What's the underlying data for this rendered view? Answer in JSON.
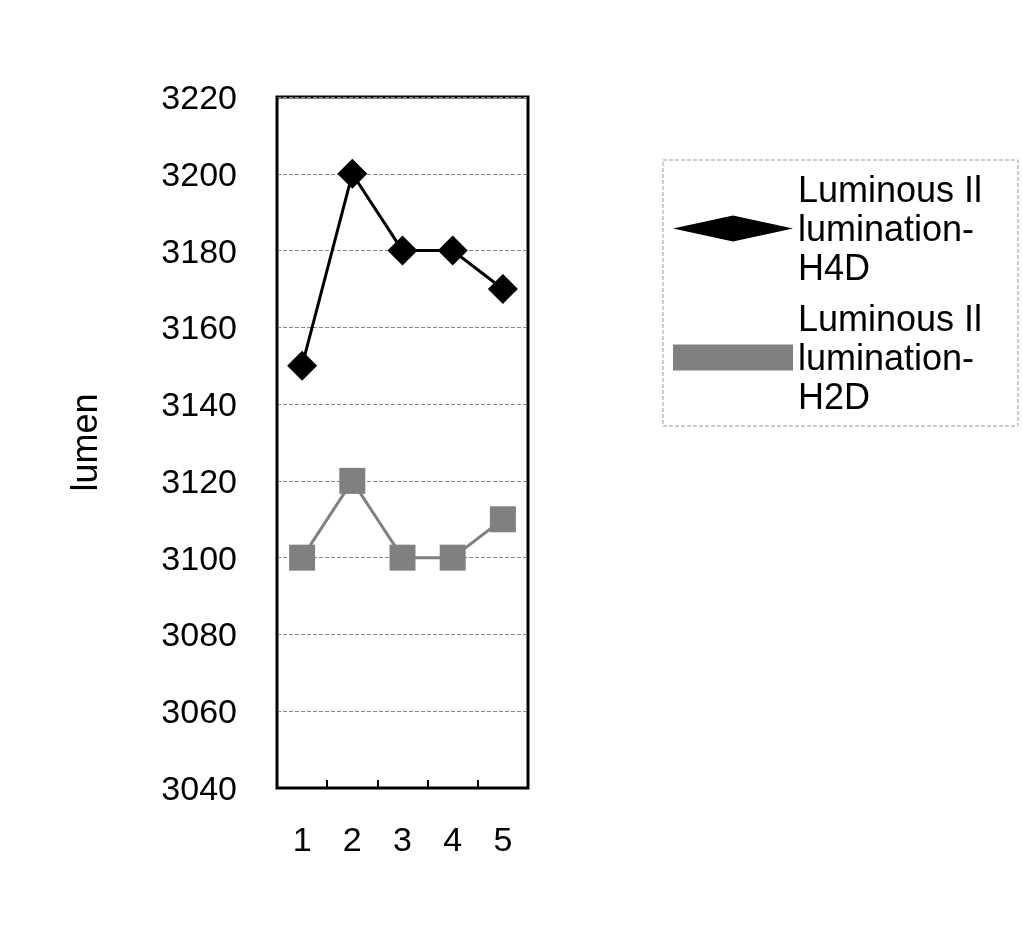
{
  "chart_data": {
    "type": "line",
    "ylabel": "lumen",
    "categories": [
      "1",
      "2",
      "3",
      "4",
      "5"
    ],
    "series": [
      {
        "name": "Luminous Illumination-H4D",
        "color": "#000000",
        "marker": "diamond",
        "values": [
          3150,
          3200,
          3180,
          3180,
          3170
        ]
      },
      {
        "name": "Luminous Illumination-H2D",
        "color": "#808080",
        "marker": "square",
        "values": [
          3100,
          3120,
          3100,
          3100,
          3110
        ]
      }
    ],
    "ylim": [
      3040,
      3220
    ],
    "yticks": [
      3040,
      3060,
      3080,
      3100,
      3120,
      3140,
      3160,
      3180,
      3200,
      3220
    ],
    "grid": "y",
    "legend": "right",
    "line_style": "solid"
  }
}
